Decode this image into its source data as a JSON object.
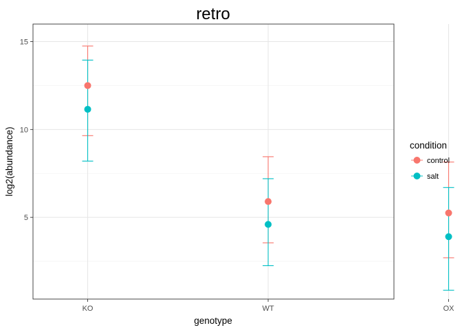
{
  "chart_data": {
    "type": "scatter",
    "title": "retro",
    "xlabel": "genotype",
    "ylabel": "log2(abundance)",
    "categories": [
      "KO",
      "WT",
      "OX"
    ],
    "ylim": [
      0.35,
      16.0
    ],
    "yticks": [
      5,
      10,
      15
    ],
    "grid": true,
    "error_bars": true,
    "legend": {
      "title": "condition",
      "position": "right"
    },
    "series": [
      {
        "name": "control",
        "color": "#F8766D",
        "values": [
          12.5,
          5.9,
          5.25
        ],
        "lower": [
          9.65,
          3.55,
          2.7
        ],
        "upper": [
          14.75,
          8.45,
          8.15
        ]
      },
      {
        "name": "salt",
        "color": "#00BFC4",
        "values": [
          11.15,
          4.6,
          3.9
        ],
        "lower": [
          8.2,
          2.25,
          0.85
        ],
        "upper": [
          13.95,
          7.2,
          6.7
        ]
      }
    ]
  }
}
